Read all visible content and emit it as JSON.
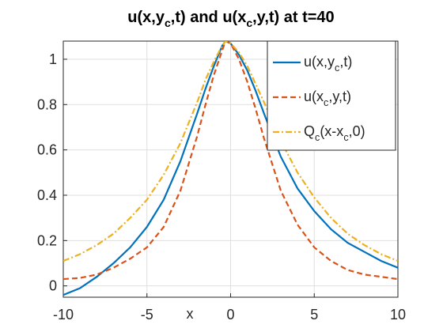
{
  "chart_data": {
    "type": "line",
    "title": [
      "u(x,y",
      "c",
      ",t) and u(x",
      "c",
      ",y,t) at t=40"
    ],
    "x_label": "x",
    "x": [
      -10,
      -9,
      -8,
      -7,
      -6,
      -5,
      -4,
      -3,
      -2,
      -1.5,
      -1,
      -0.5,
      -0.3,
      0,
      0.5,
      1,
      1.5,
      2,
      3,
      4,
      5,
      6,
      7,
      8,
      9,
      10
    ],
    "series": [
      {
        "name": [
          "u(x,y",
          "c",
          ",t)"
        ],
        "color": "#0072bd",
        "dash": "solid",
        "values": [
          -0.04,
          -0.01,
          0.04,
          0.1,
          0.17,
          0.26,
          0.38,
          0.55,
          0.76,
          0.87,
          0.97,
          1.06,
          1.08,
          1.07,
          1.02,
          0.95,
          0.86,
          0.76,
          0.57,
          0.43,
          0.33,
          0.25,
          0.19,
          0.15,
          0.11,
          0.08
        ]
      },
      {
        "name": [
          "u(x",
          "c",
          ",y,t)"
        ],
        "color": "#d95319",
        "dash": "dashed",
        "values": [
          0.03,
          0.035,
          0.05,
          0.08,
          0.12,
          0.17,
          0.26,
          0.42,
          0.66,
          0.8,
          0.93,
          1.04,
          1.08,
          1.07,
          1.0,
          0.9,
          0.78,
          0.65,
          0.42,
          0.27,
          0.17,
          0.11,
          0.07,
          0.05,
          0.04,
          0.03
        ]
      },
      {
        "name": [
          "Q",
          "c",
          "(x-x",
          "c",
          ",0)"
        ],
        "color": "#edb120",
        "dash": "dashdot",
        "values": [
          0.11,
          0.14,
          0.18,
          0.23,
          0.3,
          0.38,
          0.49,
          0.63,
          0.81,
          0.91,
          0.99,
          1.06,
          1.08,
          1.07,
          1.03,
          0.97,
          0.89,
          0.81,
          0.64,
          0.5,
          0.39,
          0.3,
          0.23,
          0.18,
          0.14,
          0.11
        ]
      }
    ],
    "xlim": [
      -10,
      10
    ],
    "xticks": [
      -10,
      -5,
      0,
      5,
      10
    ],
    "ylim": [
      -0.05,
      1.08
    ],
    "yticks": [
      0,
      0.2,
      0.4,
      0.6,
      0.8,
      1
    ],
    "grid": true,
    "legend": "northeast"
  }
}
